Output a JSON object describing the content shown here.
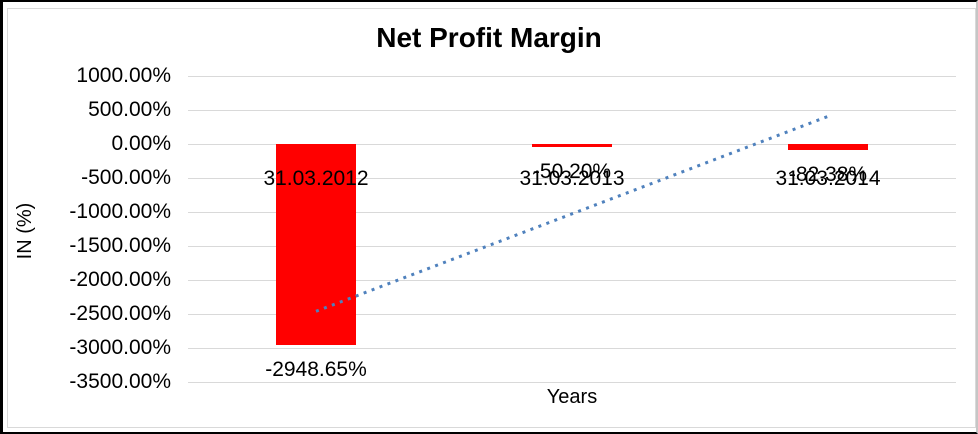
{
  "chart_data": {
    "type": "bar",
    "title": "Net Profit Margin",
    "xlabel": "Years",
    "ylabel": "IN (%)",
    "categories": [
      "31.03.2012",
      "31.03.2013",
      "31.03.2014"
    ],
    "values": [
      -2948.65,
      -50.2,
      -82.38
    ],
    "data_labels": [
      "-2948.65%",
      "-50.20%",
      "-82.38%"
    ],
    "ylim": [
      -3500,
      1000
    ],
    "ytick_step": 500,
    "ytick_suffix": "%",
    "ytick_decimals": 2,
    "grid": "horizontal-only",
    "legend": "none",
    "trendline": {
      "kind": "linear",
      "style": "dotted"
    }
  },
  "colors": {
    "bar": "#ff0000",
    "trendline": "#4f81bd",
    "gridline": "#d9d9d9",
    "text": "#000000",
    "chart_frame": "#d9d9d9",
    "outer_border": "#000000",
    "background": "#ffffff"
  }
}
